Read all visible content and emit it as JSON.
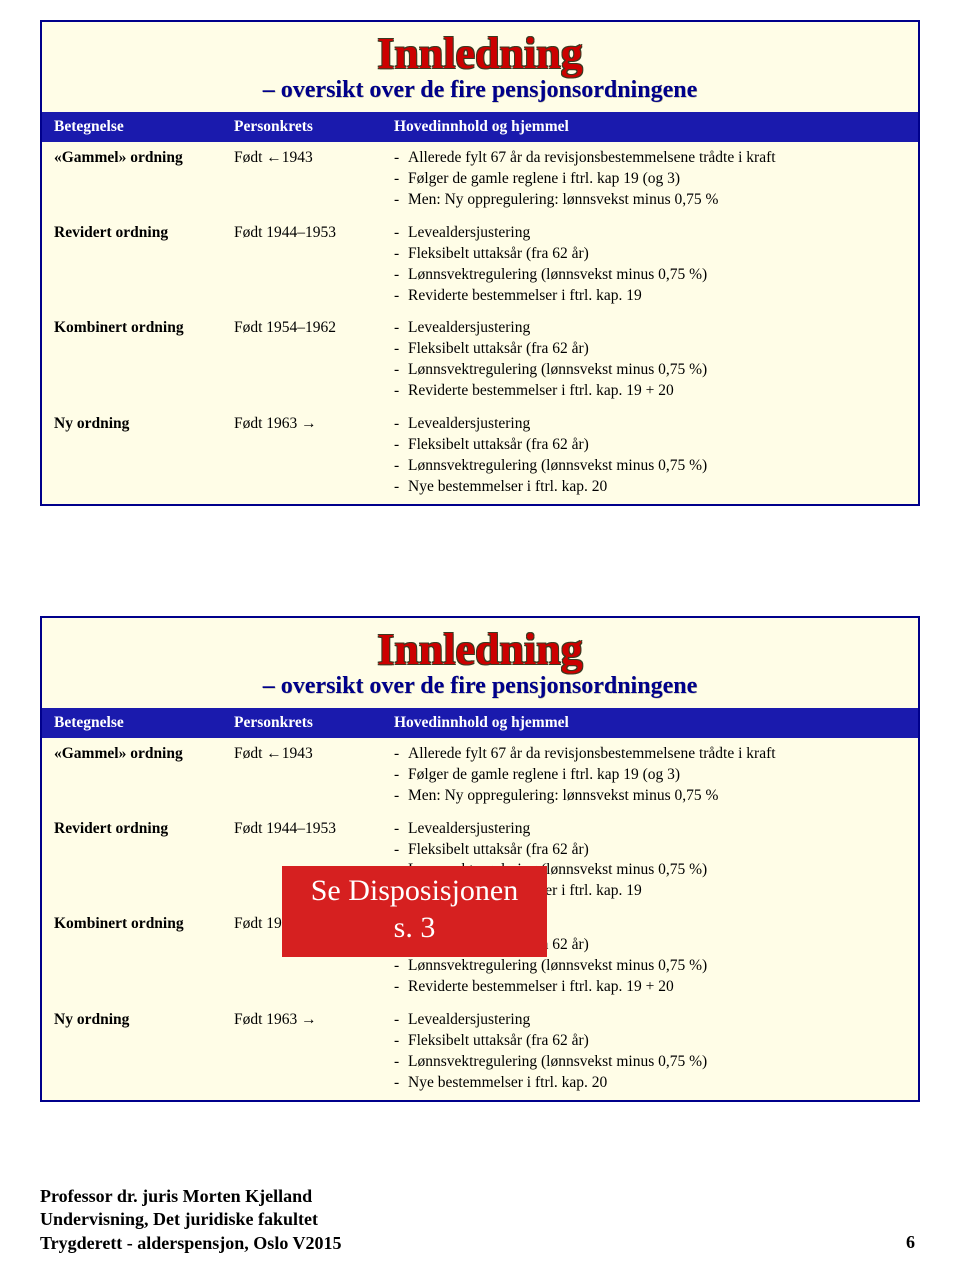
{
  "slide": {
    "title_main": "Innledning",
    "title_sub": "– oversikt over de fire pensjonsordningene",
    "headers": [
      "Betegnelse",
      "Personkrets",
      "Hovedinnhold og hjemmel"
    ],
    "rows": [
      {
        "name": "«Gammel» ordning",
        "persons": "Født ←1943",
        "items": [
          "Allerede fylt 67 år da revisjonsbestemmelsene trådte i kraft",
          "Følger de gamle reglene i ftrl. kap 19 (og 3)",
          "Men: Ny oppregulering: lønnsvekst minus 0,75 %"
        ]
      },
      {
        "name": "Revidert ordning",
        "persons": "Født 1944–1953",
        "items": [
          "Levealdersjustering",
          "Fleksibelt uttaksår (fra 62 år)",
          "Lønnsvektregulering (lønnsvekst minus 0,75 %)",
          "Reviderte bestemmelser i ftrl. kap. 19"
        ]
      },
      {
        "name": "Kombinert ordning",
        "persons": "Født 1954–1962",
        "items": [
          "Levealdersjustering",
          "Fleksibelt uttaksår (fra 62 år)",
          "Lønnsvektregulering (lønnsvekst minus 0,75 %)",
          "Reviderte bestemmelser i ftrl. kap. 19 + 20"
        ]
      },
      {
        "name": "Ny ordning",
        "persons": "Født 1963 →",
        "items": [
          "Levealdersjustering",
          "Fleksibelt uttaksår (fra 62 år)",
          "Lønnsvektregulering (lønnsvekst minus 0,75 %)",
          "Nye bestemmelser i ftrl. kap. 20"
        ]
      }
    ]
  },
  "overlay": {
    "line1": "Se Disposisjonen",
    "line2": "s. 3"
  },
  "footer": {
    "line1": "Professor dr. juris Morten Kjelland",
    "line2": "Undervisning, Det juridiske fakultet",
    "line3": "Trygderett - alderspensjon, Oslo V2015"
  },
  "page_no": "6",
  "colors": {
    "border": "#00008b",
    "slide_bg": "#fffde7",
    "title_main": "#cc0000",
    "title_sub": "#00008b",
    "th_bg": "#1a1aad",
    "th_fg": "#ffffff",
    "overlay_bg": "#d62020",
    "overlay_fg": "#ffffff",
    "text": "#000000"
  }
}
